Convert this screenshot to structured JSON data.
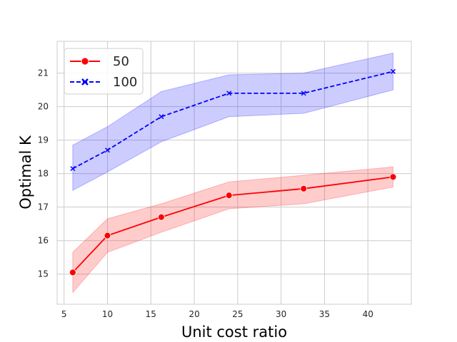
{
  "chart_data": {
    "type": "line",
    "xlabel": "Unit cost ratio",
    "ylabel": "Optimal K",
    "xlim": [
      4.2,
      45
    ],
    "ylim": [
      14.1,
      21.95
    ],
    "xticks": [
      5,
      10,
      15,
      20,
      25,
      30,
      35,
      40
    ],
    "yticks": [
      15,
      16,
      17,
      18,
      19,
      20,
      21
    ],
    "grid": true,
    "legend_position": "top-left",
    "series": [
      {
        "name": "50",
        "color": "#ff0000",
        "marker": "circle",
        "linestyle": "solid",
        "x": [
          6,
          10,
          16.2,
          24,
          32.6,
          42.9
        ],
        "y": [
          15.05,
          16.15,
          16.7,
          17.35,
          17.55,
          17.9
        ],
        "ci_lower": [
          14.45,
          15.65,
          16.25,
          16.95,
          17.1,
          17.6
        ],
        "ci_upper": [
          15.65,
          16.65,
          17.1,
          17.75,
          17.95,
          18.2
        ]
      },
      {
        "name": "100",
        "color": "#0000ff",
        "marker": "x",
        "linestyle": "dashed",
        "x": [
          6,
          10,
          16.2,
          24,
          32.6,
          42.9
        ],
        "y": [
          18.15,
          18.7,
          19.7,
          20.4,
          20.4,
          21.05
        ],
        "ci_lower": [
          17.5,
          18.05,
          18.95,
          19.7,
          19.8,
          20.5
        ],
        "ci_upper": [
          18.85,
          19.4,
          20.45,
          20.95,
          21.0,
          21.6
        ]
      }
    ]
  }
}
